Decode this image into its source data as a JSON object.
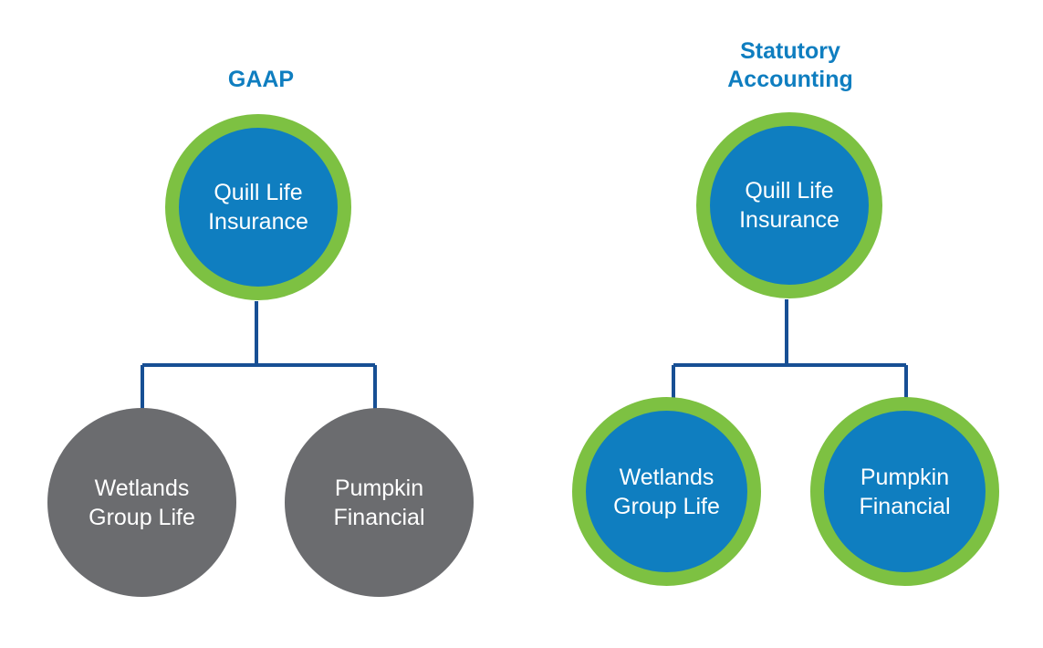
{
  "colors": {
    "title_blue": "#0f7ec0",
    "node_blue": "#0f7ec0",
    "ring_green": "#7dc142",
    "node_gray": "#6b6c6f",
    "connector": "#174f94"
  },
  "gaap": {
    "title": "GAAP",
    "parent": {
      "line1": "Quill Life",
      "line2": "Insurance"
    },
    "child_left": {
      "line1": "Wetlands",
      "line2": "Group Life"
    },
    "child_right": {
      "line1": "Pumpkin",
      "line2": "Financial"
    }
  },
  "statutory": {
    "title_line1": "Statutory",
    "title_line2": "Accounting",
    "parent": {
      "line1": "Quill Life",
      "line2": "Insurance"
    },
    "child_left": {
      "line1": "Wetlands",
      "line2": "Group Life"
    },
    "child_right": {
      "line1": "Pumpkin",
      "line2": "Financial"
    }
  }
}
